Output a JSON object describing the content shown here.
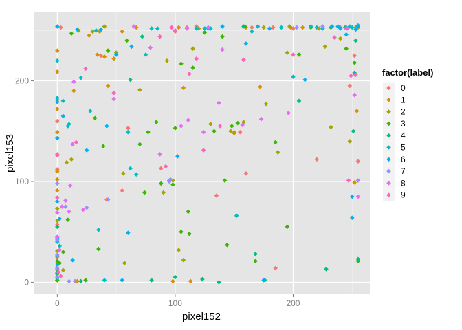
{
  "chart_data": {
    "type": "scatter",
    "xlabel": "pixel152",
    "ylabel": "pixel153",
    "xlim": [
      -20,
      265
    ],
    "ylim": [
      -12,
      268
    ],
    "x_ticks": [
      0,
      100,
      200
    ],
    "y_ticks": [
      0,
      100,
      200
    ],
    "grid": true,
    "legend": {
      "title": "factor(label)",
      "position": "right",
      "labels": [
        "0",
        "1",
        "2",
        "3",
        "4",
        "5",
        "6",
        "7",
        "8",
        "9"
      ]
    },
    "colors": [
      "#F8766D",
      "#D89000",
      "#A3A500",
      "#39B600",
      "#00BF7D",
      "#00BFC4",
      "#00B0F6",
      "#9590FF",
      "#E76BF3",
      "#FF62BC"
    ],
    "series": [
      {
        "label": "0",
        "points": [
          [
            0,
            127
          ],
          [
            0,
            160
          ],
          [
            0,
            112
          ],
          [
            0,
            57
          ],
          [
            0,
            25
          ],
          [
            0,
            10
          ],
          [
            3,
            253
          ],
          [
            37,
            225
          ],
          [
            42,
            82
          ],
          [
            55,
            91
          ],
          [
            60,
            153
          ],
          [
            88,
            113
          ],
          [
            100,
            249
          ],
          [
            110,
            253
          ],
          [
            118,
            254
          ],
          [
            135,
            86
          ],
          [
            150,
            149
          ],
          [
            155,
            149
          ],
          [
            160,
            108
          ],
          [
            165,
            253
          ],
          [
            183,
            253
          ],
          [
            185,
            14
          ],
          [
            200,
            252
          ],
          [
            220,
            122
          ],
          [
            240,
            253
          ],
          [
            248,
            195
          ],
          [
            252,
            225
          ],
          [
            255,
            120
          ]
        ]
      },
      {
        "label": "1",
        "points": [
          [
            0,
            230
          ],
          [
            0,
            209
          ],
          [
            0,
            172
          ],
          [
            0,
            149
          ],
          [
            0,
            110
          ],
          [
            0,
            102
          ],
          [
            0,
            91
          ],
          [
            0,
            13
          ],
          [
            0,
            2
          ],
          [
            5,
            12
          ],
          [
            14,
            190
          ],
          [
            17,
            1
          ],
          [
            27,
            245
          ],
          [
            34,
            226
          ],
          [
            36,
            249
          ],
          [
            40,
            224
          ],
          [
            43,
            195
          ],
          [
            48,
            222
          ],
          [
            55,
            249
          ],
          [
            67,
            253
          ],
          [
            98,
            1
          ],
          [
            103,
            253
          ],
          [
            107,
            193
          ],
          [
            113,
            1
          ],
          [
            120,
            252
          ],
          [
            160,
            253
          ],
          [
            172,
            194
          ],
          [
            198,
            253
          ],
          [
            208,
            253
          ],
          [
            222,
            252
          ],
          [
            245,
            253
          ],
          [
            252,
            99
          ],
          [
            254,
            170
          ],
          [
            255,
            253
          ]
        ]
      },
      {
        "label": "2",
        "points": [
          [
            0,
            181
          ],
          [
            0,
            73
          ],
          [
            0,
            61
          ],
          [
            0,
            31
          ],
          [
            0,
            19
          ],
          [
            0,
            2
          ],
          [
            5,
            12
          ],
          [
            8,
            119
          ],
          [
            12,
            122
          ],
          [
            18,
            250
          ],
          [
            30,
            249
          ],
          [
            40,
            254
          ],
          [
            43,
            230
          ],
          [
            50,
            228
          ],
          [
            56,
            108
          ],
          [
            57,
            19
          ],
          [
            70,
            191
          ],
          [
            90,
            89
          ],
          [
            93,
            220
          ],
          [
            98,
            101
          ],
          [
            103,
            32
          ],
          [
            107,
            22
          ],
          [
            110,
            252
          ],
          [
            115,
            232
          ],
          [
            130,
            157
          ],
          [
            147,
            150
          ],
          [
            150,
            148
          ],
          [
            158,
            159
          ],
          [
            175,
            253
          ],
          [
            177,
            177
          ],
          [
            187,
            129
          ],
          [
            195,
            228
          ],
          [
            197,
            254
          ],
          [
            215,
            254
          ],
          [
            227,
            234
          ],
          [
            232,
            154
          ],
          [
            240,
            242
          ],
          [
            248,
            140
          ],
          [
            253,
            253
          ]
        ]
      },
      {
        "label": "3",
        "points": [
          [
            0,
            21
          ],
          [
            0,
            8
          ],
          [
            0,
            2
          ],
          [
            2,
            19
          ],
          [
            5,
            30
          ],
          [
            9,
            62
          ],
          [
            12,
            247
          ],
          [
            24,
            2
          ],
          [
            32,
            163
          ],
          [
            35,
            33
          ],
          [
            39,
            135
          ],
          [
            43,
            230
          ],
          [
            59,
            240
          ],
          [
            70,
            137
          ],
          [
            74,
            89
          ],
          [
            77,
            149
          ],
          [
            84,
            159
          ],
          [
            88,
            98
          ],
          [
            98,
            97
          ],
          [
            100,
            153
          ],
          [
            105,
            217
          ],
          [
            105,
            50
          ],
          [
            111,
            70
          ],
          [
            112,
            48
          ],
          [
            115,
            213
          ],
          [
            125,
            248
          ],
          [
            133,
            150
          ],
          [
            140,
            244
          ],
          [
            142,
            101
          ],
          [
            144,
            37
          ],
          [
            148,
            155
          ],
          [
            153,
            158
          ],
          [
            159,
            254
          ],
          [
            168,
            21
          ],
          [
            185,
            139
          ],
          [
            195,
            55
          ],
          [
            205,
            226
          ],
          [
            215,
            253
          ],
          [
            232,
            253
          ],
          [
            245,
            232
          ],
          [
            252,
            218
          ],
          [
            252,
            208
          ],
          [
            255,
            21
          ]
        ]
      },
      {
        "label": "4",
        "points": [
          [
            0,
            55
          ],
          [
            0,
            10
          ],
          [
            0,
            4
          ],
          [
            20,
            1
          ],
          [
            62,
            201
          ],
          [
            72,
            244
          ],
          [
            80,
            2
          ],
          [
            100,
            5
          ],
          [
            123,
            3
          ],
          [
            137,
            0
          ],
          [
            158,
            254
          ],
          [
            168,
            28
          ],
          [
            176,
            2
          ],
          [
            205,
            180
          ],
          [
            228,
            13
          ],
          [
            244,
            253
          ],
          [
            251,
            150
          ],
          [
            253,
            240
          ],
          [
            255,
            23
          ]
        ]
      },
      {
        "label": "5",
        "points": [
          [
            0,
            220
          ],
          [
            0,
            183
          ],
          [
            0,
            40
          ],
          [
            0,
            26
          ],
          [
            2,
            36
          ],
          [
            5,
            180
          ],
          [
            9,
            155
          ],
          [
            10,
            157
          ],
          [
            20,
            203
          ],
          [
            28,
            170
          ],
          [
            33,
            250
          ],
          [
            35,
            52
          ],
          [
            40,
            2
          ],
          [
            60,
            149
          ],
          [
            62,
            113
          ],
          [
            67,
            107
          ],
          [
            75,
            226
          ],
          [
            80,
            252
          ],
          [
            85,
            252
          ],
          [
            118,
            252
          ],
          [
            125,
            252
          ],
          [
            130,
            252
          ],
          [
            152,
            66
          ],
          [
            165,
            249
          ],
          [
            170,
            254
          ],
          [
            190,
            253
          ],
          [
            200,
            204
          ],
          [
            215,
            254
          ],
          [
            220,
            253
          ],
          [
            225,
            252
          ],
          [
            245,
            253
          ],
          [
            248,
            254
          ],
          [
            250,
            253
          ],
          [
            255,
            255
          ]
        ]
      },
      {
        "label": "6",
        "points": [
          [
            0,
            254
          ],
          [
            0,
            179
          ],
          [
            0,
            143
          ],
          [
            0,
            80
          ],
          [
            0,
            44
          ],
          [
            0,
            17
          ],
          [
            0,
            9
          ],
          [
            2,
            63
          ],
          [
            5,
            165
          ],
          [
            13,
            22
          ],
          [
            17,
            251
          ],
          [
            25,
            131
          ],
          [
            37,
            251
          ],
          [
            42,
            155
          ],
          [
            50,
            226
          ],
          [
            55,
            2
          ],
          [
            60,
            49
          ],
          [
            63,
            234
          ],
          [
            95,
            101
          ],
          [
            102,
            125
          ],
          [
            128,
            252
          ],
          [
            140,
            254
          ],
          [
            160,
            237
          ],
          [
            175,
            2
          ],
          [
            180,
            252
          ],
          [
            210,
            201
          ],
          [
            233,
            254
          ],
          [
            238,
            254
          ],
          [
            240,
            252
          ],
          [
            245,
            246
          ],
          [
            250,
            85
          ],
          [
            250,
            64
          ],
          [
            252,
            207
          ],
          [
            253,
            251
          ],
          [
            255,
            254
          ]
        ]
      },
      {
        "label": "7",
        "points": [
          [
            0,
            98
          ],
          [
            0,
            42
          ],
          [
            0,
            27
          ],
          [
            0,
            14
          ],
          [
            0,
            5
          ],
          [
            7,
            75
          ],
          [
            10,
            1
          ],
          [
            15,
            1
          ],
          [
            25,
            74
          ],
          [
            43,
            82
          ],
          [
            95,
            100
          ],
          [
            96,
            102
          ],
          [
            203,
            253
          ],
          [
            225,
            254
          ],
          [
            246,
            252
          ],
          [
            255,
            101
          ]
        ]
      },
      {
        "label": "8",
        "points": [
          [
            0,
            69
          ],
          [
            0,
            45
          ],
          [
            2,
            32
          ],
          [
            4,
            75
          ],
          [
            7,
            81
          ],
          [
            10,
            70
          ],
          [
            11,
            96
          ],
          [
            13,
            137
          ],
          [
            14,
            199
          ],
          [
            22,
            72
          ],
          [
            48,
            182
          ],
          [
            65,
            254
          ],
          [
            79,
            233
          ],
          [
            87,
            127
          ],
          [
            105,
            155
          ],
          [
            110,
            252
          ],
          [
            111,
            161
          ],
          [
            124,
            149
          ],
          [
            128,
            253
          ],
          [
            137,
            178
          ],
          [
            140,
            231
          ],
          [
            157,
            156
          ],
          [
            173,
            162
          ],
          [
            196,
            168
          ],
          [
            252,
            186
          ],
          [
            255,
            85
          ]
        ]
      },
      {
        "label": "9",
        "points": [
          [
            0,
            126
          ],
          [
            0,
            84
          ],
          [
            1,
            10
          ],
          [
            3,
            6
          ],
          [
            16,
            139
          ],
          [
            24,
            212
          ],
          [
            48,
            188
          ],
          [
            87,
            244
          ],
          [
            92,
            115
          ],
          [
            97,
            253
          ],
          [
            100,
            250
          ],
          [
            112,
            207
          ],
          [
            118,
            222
          ],
          [
            124,
            131
          ],
          [
            138,
            155
          ],
          [
            158,
            221
          ],
          [
            200,
            226
          ],
          [
            235,
            243
          ],
          [
            245,
            252
          ],
          [
            247,
            101
          ],
          [
            249,
            205
          ],
          [
            253,
            206
          ]
        ]
      }
    ]
  }
}
